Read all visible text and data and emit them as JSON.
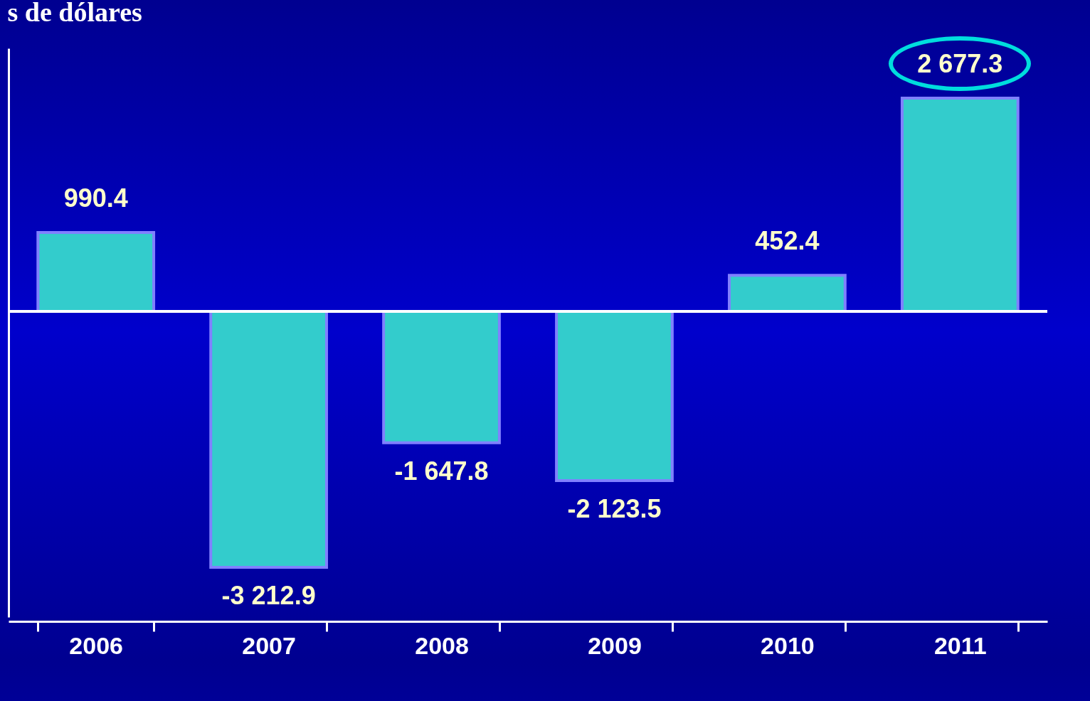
{
  "chart_data": {
    "type": "bar",
    "title": "s de dólares",
    "categories": [
      "2006",
      "2007",
      "2008",
      "2009",
      "2010",
      "2011"
    ],
    "values": [
      990.4,
      -3212.9,
      -1647.8,
      -2123.5,
      452.4,
      2677.3
    ],
    "value_labels": [
      "990.4",
      "-3 212.9",
      "-1 647.8",
      "-2 123.5",
      "452.4",
      "2 677.3"
    ],
    "color": "#33cccc",
    "grid": false
  }
}
